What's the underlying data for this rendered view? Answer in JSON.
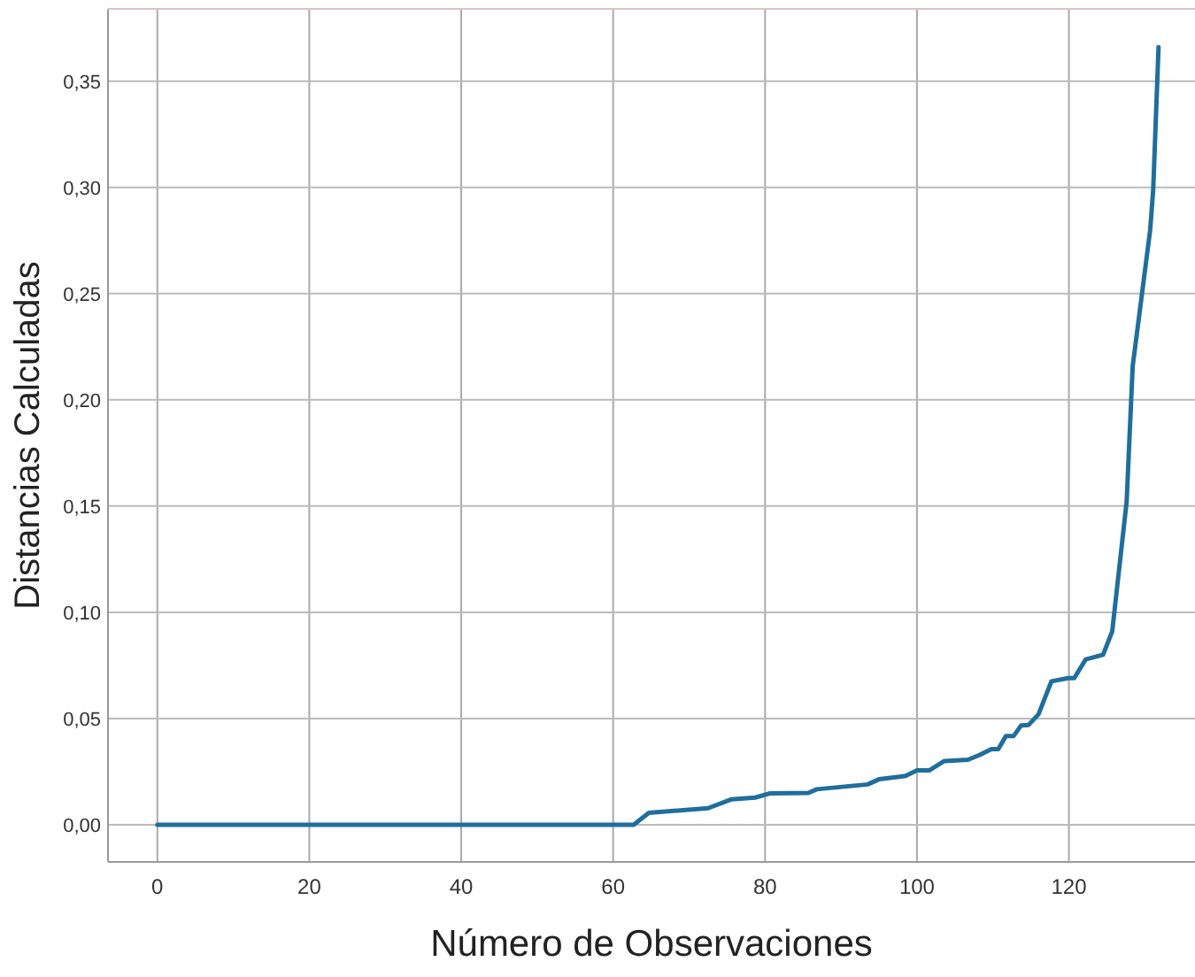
{
  "chart_data": {
    "type": "line",
    "xlabel": "Número de Observaciones",
    "ylabel": "Distancias Calculadas",
    "x": [
      0,
      62.7,
      64.7,
      72.5,
      75.6,
      78.7,
      80.7,
      85.7,
      86.8,
      93.5,
      95,
      98.5,
      100,
      101.6,
      103.6,
      106.7,
      108.2,
      109.8,
      110.7,
      111.7,
      112.7,
      113.7,
      114.7,
      116,
      117.7,
      119.9,
      120.7,
      122.2,
      124.5,
      125.7,
      127.6,
      128.4,
      128.8,
      130.7,
      131.1,
      131.8
    ],
    "series": [
      {
        "color": "#1f6e9c",
        "values": [
          0,
          0,
          0.0056,
          0.0078,
          0.012,
          0.0128,
          0.0148,
          0.015,
          0.0167,
          0.019,
          0.0214,
          0.023,
          0.0256,
          0.0256,
          0.03,
          0.0306,
          0.0328,
          0.0356,
          0.0356,
          0.0417,
          0.0417,
          0.0467,
          0.047,
          0.052,
          0.0675,
          0.069,
          0.069,
          0.0778,
          0.08,
          0.091,
          0.152,
          0.216,
          0.227,
          0.28,
          0.299,
          0.366
        ]
      }
    ],
    "xlim": [
      -6.5,
      136.6
    ],
    "ylim": [
      -0.0175,
      0.384
    ],
    "xticks": [
      0,
      20,
      40,
      60,
      80,
      100,
      120
    ],
    "yticks": [
      {
        "value": 0,
        "label": "0,00"
      },
      {
        "value": 0.05,
        "label": "0,05"
      },
      {
        "value": 0.1,
        "label": "0,10"
      },
      {
        "value": 0.15,
        "label": "0,15"
      },
      {
        "value": 0.2,
        "label": "0,20"
      },
      {
        "value": 0.25,
        "label": "0,25"
      },
      {
        "value": 0.3,
        "label": "0,30"
      },
      {
        "value": 0.35,
        "label": "0,35"
      }
    ],
    "grid": true,
    "marker": "none",
    "line_style": "solid"
  }
}
